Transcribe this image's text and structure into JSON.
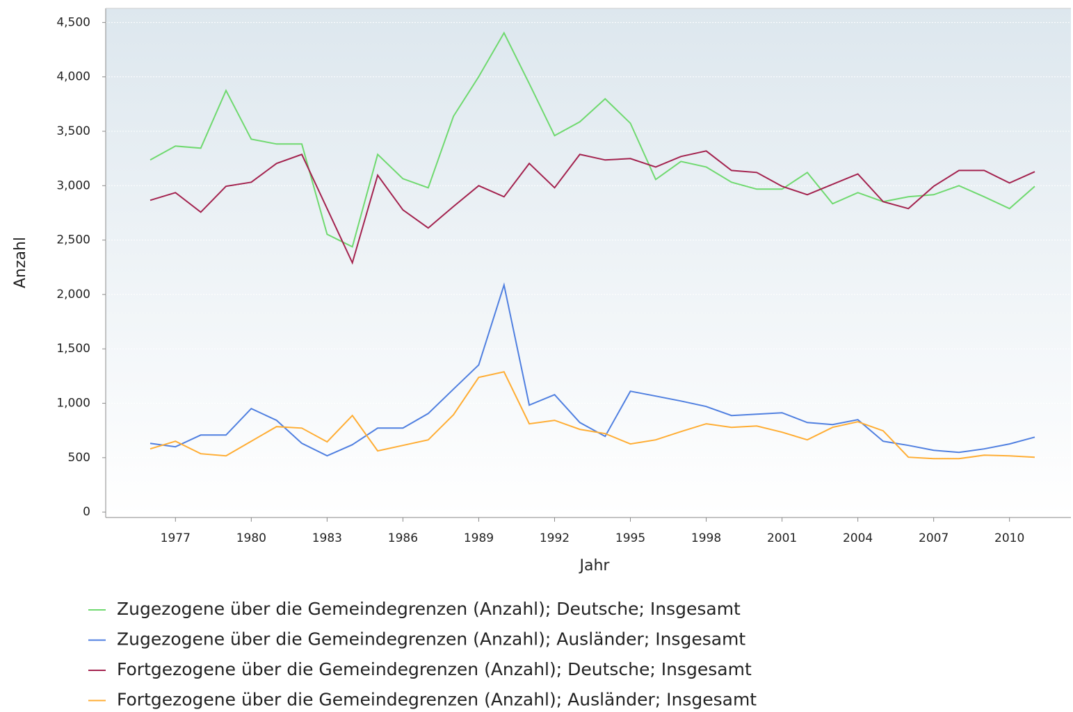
{
  "chart_data": {
    "type": "line",
    "x_label": "Jahr",
    "y_label": "Anzahl",
    "x": [
      1976,
      1977,
      1978,
      1979,
      1980,
      1981,
      1982,
      1983,
      1984,
      1985,
      1986,
      1987,
      1988,
      1989,
      1990,
      1991,
      1992,
      1993,
      1994,
      1995,
      1996,
      1997,
      1998,
      1999,
      2000,
      2001,
      2002,
      2003,
      2004,
      2005,
      2006,
      2007,
      2008,
      2009,
      2010,
      2011
    ],
    "xlim": [
      1974.24,
      2012.43
    ],
    "xticks": [
      1977,
      1980,
      1983,
      1986,
      1989,
      1992,
      1995,
      1998,
      2001,
      2004,
      2007,
      2010
    ],
    "ylim": [
      -50,
      4630
    ],
    "yticks": [
      0,
      500,
      {
        "value": 1000,
        "label": "1,000"
      },
      {
        "value": 1500,
        "label": "1,500"
      },
      {
        "value": 2000,
        "label": "2,000"
      },
      {
        "value": 2500,
        "label": "2,500"
      },
      {
        "value": 3000,
        "label": "3,000"
      },
      {
        "value": 3500,
        "label": "3,500"
      },
      {
        "value": 4000,
        "label": "4,000"
      },
      {
        "value": 4500,
        "label": "4,500"
      }
    ],
    "grid": true,
    "legend": "bottom",
    "series": [
      {
        "name": "Zugezogene über die Gemeindegrenzen (Anzahl); Deutsche; Insgesamt",
        "color": "#6fd96f",
        "values": [
          3236,
          3364,
          3345,
          3875,
          3428,
          3383,
          3383,
          2553,
          2438,
          3287,
          3064,
          2981,
          3638,
          4002,
          4404,
          3938,
          3460,
          3587,
          3798,
          3574,
          3057,
          3223,
          3172,
          3032,
          2968,
          2968,
          3121,
          2834,
          2936,
          2853,
          2898,
          2917,
          3000,
          2898,
          2789,
          2994
        ]
      },
      {
        "name": "Zugezogene über die Gemeindegrenzen (Anzahl); Ausländer; Insgesamt",
        "color": "#4f7fe0",
        "values": [
          632,
          600,
          708,
          708,
          951,
          843,
          632,
          517,
          619,
          772,
          772,
          906,
          1130,
          1353,
          2087,
          983,
          1079,
          823,
          696,
          1111,
          1066,
          1021,
          970,
          887,
          900,
          913,
          823,
          804,
          849,
          651,
          613,
          568,
          549,
          581,
          626,
          689
        ]
      },
      {
        "name": "Fortgezogene über die Gemeindegrenzen (Anzahl); Deutsche; Insgesamt",
        "color": "#a3224e",
        "values": [
          2866,
          2936,
          2757,
          2994,
          3032,
          3204,
          3287,
          2789,
          2291,
          3096,
          2777,
          2611,
          2809,
          3000,
          2898,
          3204,
          2981,
          3287,
          3236,
          3249,
          3172,
          3268,
          3319,
          3140,
          3121,
          2994,
          2917,
          3013,
          3108,
          2853,
          2789,
          2994,
          3140,
          3140,
          3025,
          3128
        ]
      },
      {
        "name": "Fortgezogene über die Gemeindegrenzen (Anzahl); Ausländer; Insgesamt",
        "color": "#ffad33",
        "values": [
          581,
          651,
          536,
          517,
          651,
          785,
          772,
          645,
          887,
          562,
          613,
          664,
          894,
          1238,
          1289,
          811,
          843,
          760,
          721,
          626,
          664,
          740,
          811,
          779,
          791,
          734,
          664,
          779,
          830,
          747,
          504,
          491,
          491,
          523,
          517,
          504
        ]
      }
    ]
  }
}
